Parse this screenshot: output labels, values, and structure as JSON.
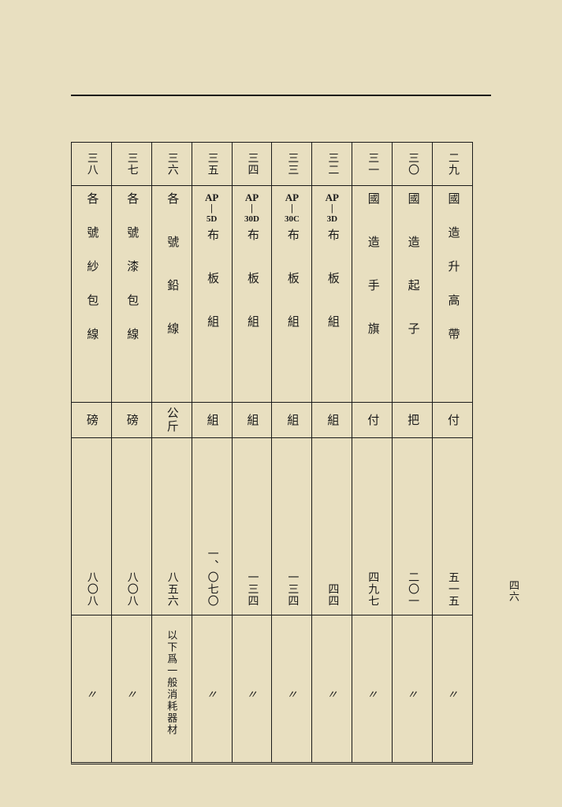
{
  "page_number": "四六",
  "columns": [
    {
      "num": "二九",
      "desc": "國造升高帶",
      "desc_style": "spread",
      "unit": "付",
      "qty": "五一五",
      "note": "〃"
    },
    {
      "num": "三〇",
      "desc": "國造起子",
      "desc_style": "spread",
      "unit": "把",
      "qty": "二〇一",
      "note": "〃"
    },
    {
      "num": "三一",
      "desc": "國造手旗",
      "desc_style": "spread",
      "unit": "付",
      "qty": "四九七",
      "note": "〃"
    },
    {
      "num": "三二",
      "desc": "布板組",
      "desc_style": "ap",
      "ap_top": "AP",
      "ap_bottom": "3D",
      "unit": "組",
      "qty": "四四",
      "note": "〃"
    },
    {
      "num": "三三",
      "desc": "布板組",
      "desc_style": "ap",
      "ap_top": "AP",
      "ap_bottom": "30C",
      "unit": "組",
      "qty": "一三四",
      "note": "〃"
    },
    {
      "num": "三四",
      "desc": "布板組",
      "desc_style": "ap",
      "ap_top": "AP",
      "ap_bottom": "30D",
      "unit": "組",
      "qty": "一三四",
      "note": "〃"
    },
    {
      "num": "三五",
      "desc": "布板組",
      "desc_style": "ap",
      "ap_top": "AP",
      "ap_bottom": "5D",
      "unit": "組",
      "qty": "一、〇七〇",
      "note": "〃"
    },
    {
      "num": "三六",
      "desc": "各號鉛線",
      "desc_style": "spread",
      "unit": "公斤",
      "qty": "八五六",
      "note": "以下爲一般消耗器材"
    },
    {
      "num": "三七",
      "desc": "各號漆包線",
      "desc_style": "spread",
      "unit": "磅",
      "qty": "八〇八",
      "note": "〃"
    },
    {
      "num": "三八",
      "desc": "各號紗包線",
      "desc_style": "spread",
      "unit": "磅",
      "qty": "八〇八",
      "note": "〃"
    }
  ]
}
